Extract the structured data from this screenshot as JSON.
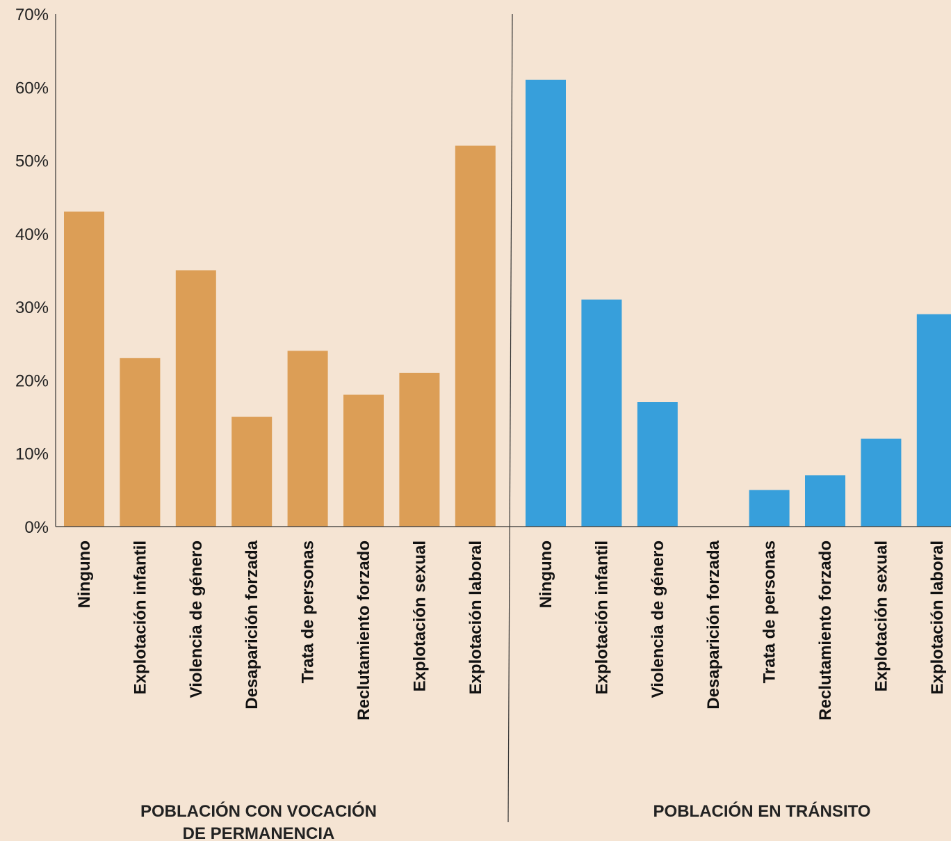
{
  "chart_data": {
    "type": "bar",
    "ylim": [
      0,
      70
    ],
    "yticks": [
      "0%",
      "10%",
      "20%",
      "30%",
      "40%",
      "50%",
      "60%",
      "70%"
    ],
    "groups": [
      {
        "label_lines": [
          "POBLACIÓN CON VOCACIÓN",
          "DE PERMANENCIA"
        ],
        "color": "#dc9e56",
        "categories": [
          "Ninguno",
          "Explotación infantil",
          "Violencia de género",
          "Desaparición forzada",
          "Trata de personas",
          "Reclutamiento forzado",
          "Explotación sexual",
          "Explotación laboral"
        ],
        "values": [
          43,
          23,
          35,
          15,
          24,
          18,
          21,
          52
        ]
      },
      {
        "label_lines": [
          "POBLACIÓN EN TRÁNSITO"
        ],
        "color": "#379fdb",
        "categories": [
          "Ninguno",
          "Explotación infantil",
          "Violencia de género",
          "Desaparición forzada",
          "Trata de personas",
          "Reclutamiento forzado",
          "Explotación sexual",
          "Explotación laboral"
        ],
        "values": [
          61,
          31,
          17,
          0,
          5,
          7,
          12,
          29
        ]
      }
    ]
  }
}
